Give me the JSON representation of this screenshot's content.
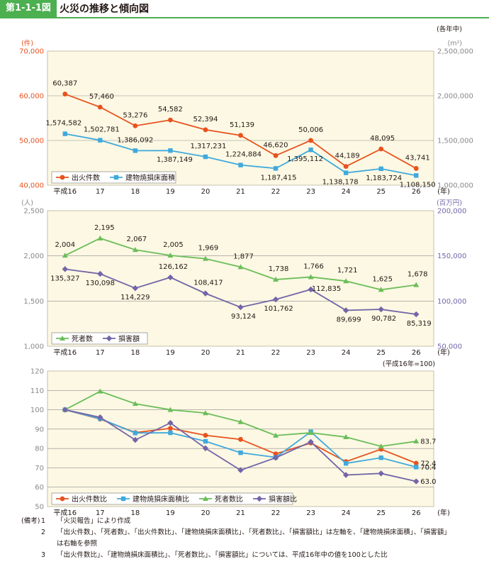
{
  "header": {
    "figure_label": "第1-1-1図",
    "title": "火災の推移と傾向図"
  },
  "colors": {
    "panel_bg": "#fcf8e3",
    "fire": "#e8521e",
    "area": "#3fa9dd",
    "death": "#6cbd5a",
    "loss": "#7265a8",
    "axis_orange": "#e8521e",
    "axis_purple": "#7265a8",
    "axis_gray": "#888888"
  },
  "notes": {
    "tag": "(備考)",
    "items": [
      {
        "num": "1",
        "text": "「火災報告」により作成"
      },
      {
        "num": "2",
        "text": "「出火件数」、「死者数」、「出火件数比」、「建物焼損床面積比」、「死者数比」、「損害額比」は左軸を、「建物焼損床面積」、「損害額」"
      },
      {
        "num": "",
        "text": "は右軸を参照"
      },
      {
        "num": "3",
        "text": "「出火件数比」、「建物焼損床面積比」、「死者数比」、「損害額比」については、平成16年中の値を100とした比"
      }
    ]
  },
  "chart_data": [
    {
      "type": "line",
      "categories": [
        "平成16",
        "17",
        "18",
        "19",
        "20",
        "21",
        "22",
        "23",
        "24",
        "25",
        "26"
      ],
      "x_unit": "(年)",
      "y_left": {
        "unit": "(件)",
        "ylim": [
          40000,
          70000
        ],
        "ticks": [
          "40,000",
          "50,000",
          "60,000",
          "70,000"
        ],
        "tick_values": [
          40000,
          50000,
          60000,
          70000
        ]
      },
      "y_right": {
        "unit": "(m²)",
        "note": "(各年中)",
        "ylim": [
          1000000,
          2500000
        ],
        "ticks": [
          "1,000,000",
          "1,500,000",
          "2,000,000",
          "2,500,000"
        ],
        "tick_values": [
          1000000,
          1500000,
          2000000,
          2500000
        ]
      },
      "series": [
        {
          "name": "出火件数",
          "axis": "left",
          "color": "#e8521e",
          "marker": "circle",
          "values": [
            60387,
            57460,
            53276,
            54582,
            52394,
            51139,
            46620,
            50006,
            44189,
            48095,
            43741
          ],
          "labels": [
            "60,387",
            "57,460",
            "53,276",
            "54,582",
            "52,394",
            "51,139",
            "46,620",
            "50,006",
            "44,189",
            "48,095",
            "43,741"
          ]
        },
        {
          "name": "建物焼損床面積",
          "axis": "right",
          "color": "#3fa9dd",
          "marker": "square",
          "values": [
            1574582,
            1502781,
            1386092,
            1387149,
            1317231,
            1224884,
            1187415,
            1395112,
            1138178,
            1183724,
            1108150
          ],
          "labels": [
            "1,574,582",
            "1,502,781",
            "1,386,092",
            "1,387,149",
            "1,317,231",
            "1,224,884",
            "1,187,415",
            "1,395,112",
            "1,138,178",
            "1,183,724",
            "1,108,150"
          ]
        }
      ],
      "legend": "bottom-left",
      "grid": true
    },
    {
      "type": "line",
      "categories": [
        "平成16",
        "17",
        "18",
        "19",
        "20",
        "21",
        "22",
        "23",
        "24",
        "25",
        "26"
      ],
      "x_unit": "(年)",
      "y_left": {
        "unit": "(人)",
        "ylim": [
          1000,
          2500
        ],
        "ticks": [
          "1,000",
          "1,500",
          "2,000",
          "2,500"
        ],
        "tick_values": [
          1000,
          1500,
          2000,
          2500
        ]
      },
      "y_right": {
        "unit": "(百万円)",
        "ylim": [
          50000,
          200000
        ],
        "ticks": [
          "50,000",
          "100,000",
          "150,000",
          "200,000"
        ],
        "tick_values": [
          50000,
          100000,
          150000,
          200000
        ]
      },
      "series": [
        {
          "name": "死者数",
          "axis": "left",
          "color": "#6cbd5a",
          "marker": "triangle",
          "values": [
            2004,
            2195,
            2067,
            2005,
            1969,
            1877,
            1738,
            1766,
            1721,
            1625,
            1678
          ],
          "labels": [
            "2,004",
            "2,195",
            "2,067",
            "2,005",
            "1,969",
            "1,877",
            "1,738",
            "1,766",
            "1,721",
            "1,625",
            "1,678"
          ]
        },
        {
          "name": "損害額",
          "axis": "right",
          "color": "#7265a8",
          "marker": "diamond",
          "values": [
            135327,
            130098,
            114229,
            126162,
            108417,
            93124,
            101762,
            112835,
            89699,
            90782,
            85319
          ],
          "labels": [
            "135,327",
            "130,098",
            "114,229",
            "126,162",
            "108,417",
            "93,124",
            "101,762",
            "112,835",
            "89,699",
            "90,782",
            "85,319"
          ]
        }
      ],
      "legend": "bottom-left",
      "grid": true
    },
    {
      "type": "line",
      "categories": [
        "平成16",
        "17",
        "18",
        "19",
        "20",
        "21",
        "22",
        "23",
        "24",
        "25",
        "26"
      ],
      "x_unit": "(年)",
      "note": "(平成16年=100)",
      "y_left": {
        "ylim": [
          50,
          120
        ],
        "ticks": [
          "50",
          "60",
          "70",
          "80",
          "90",
          "100",
          "110",
          "120"
        ],
        "tick_values": [
          50,
          60,
          70,
          80,
          90,
          100,
          110,
          120
        ]
      },
      "series": [
        {
          "name": "出火件数比",
          "color": "#e8521e",
          "marker": "circle",
          "values": [
            100,
            95.2,
            88.2,
            90.4,
            86.8,
            84.7,
            77.2,
            82.8,
            73.2,
            79.6,
            72.4
          ],
          "end_label": "72.4"
        },
        {
          "name": "建物焼損床面積比",
          "color": "#3fa9dd",
          "marker": "square",
          "values": [
            100,
            95.4,
            88.0,
            88.1,
            83.7,
            77.8,
            75.4,
            88.6,
            72.3,
            75.2,
            70.4
          ],
          "end_label": "70.4"
        },
        {
          "name": "死者数比",
          "color": "#6cbd5a",
          "marker": "triangle",
          "values": [
            100,
            109.5,
            103.1,
            100.0,
            98.3,
            93.7,
            86.7,
            88.1,
            85.9,
            81.1,
            83.7
          ],
          "end_label": "83.7"
        },
        {
          "name": "損害額比",
          "color": "#7265a8",
          "marker": "diamond",
          "values": [
            100,
            96.1,
            84.4,
            93.2,
            80.1,
            68.8,
            75.2,
            83.4,
            66.3,
            67.1,
            63.0
          ],
          "end_label": "63.0"
        }
      ],
      "legend": "bottom-left",
      "grid": true
    }
  ]
}
